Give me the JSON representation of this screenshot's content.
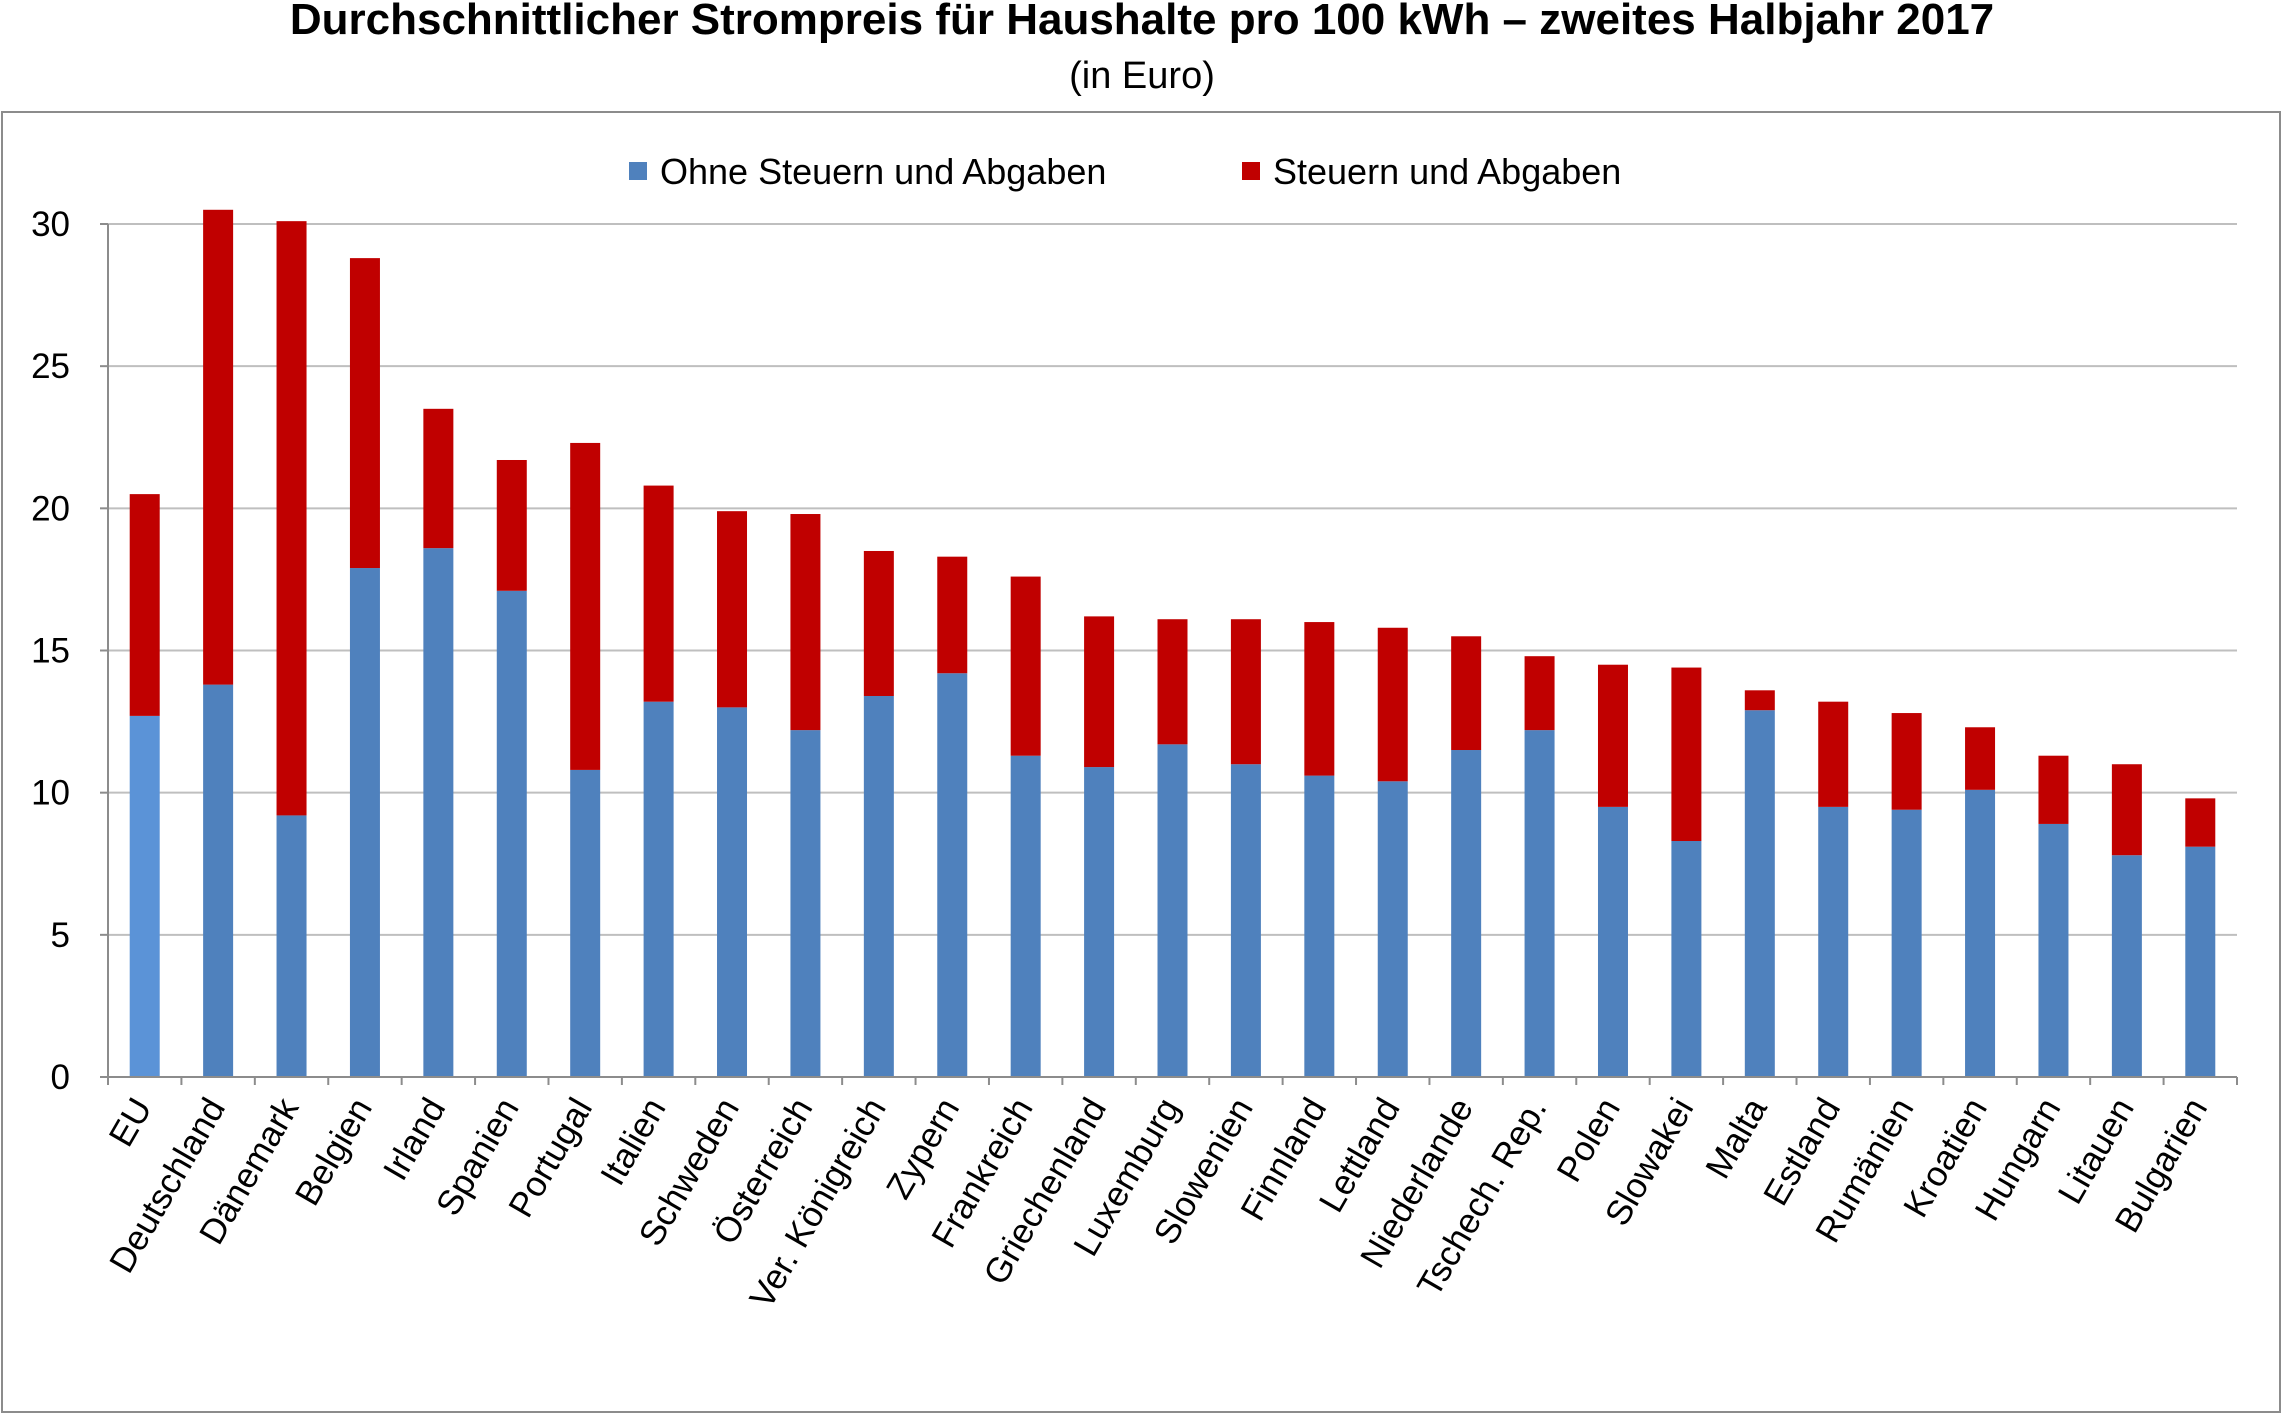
{
  "chart_data": {
    "type": "bar",
    "stacked": true,
    "title": "Durchschnittlicher Strompreis für Haushalte pro 100 kWh – zweites Halbjahr 2017",
    "subtitle": "(in Euro)",
    "xlabel": "",
    "ylabel": "",
    "ylim": [
      0,
      30
    ],
    "yticks": [
      0,
      5,
      10,
      15,
      20,
      25,
      30
    ],
    "grid": true,
    "legend_position": "top-center",
    "categories": [
      "EU",
      "Deutschland",
      "Dänemark",
      "Belgien",
      "Irland",
      "Spanien",
      "Portugal",
      "Italien",
      "Schweden",
      "Österreich",
      "Ver. Königreich",
      "Zypern",
      "Frankreich",
      "Griechenland",
      "Luxemburg",
      "Slowenien",
      "Finnland",
      "Lettland",
      "Niederlande",
      "Tschech. Rep.",
      "Polen",
      "Slowakei",
      "Malta",
      "Estland",
      "Rumänien",
      "Kroatien",
      "Hungarn",
      "Litauen",
      "Bulgarien"
    ],
    "series": [
      {
        "name": "Ohne Steuern und Abgaben",
        "color": "#4f81bd",
        "highlight_color": "#5b93d7",
        "values": [
          12.7,
          13.8,
          9.2,
          17.9,
          18.6,
          17.1,
          10.8,
          13.2,
          13.0,
          12.2,
          13.4,
          14.2,
          11.3,
          10.9,
          11.7,
          11.0,
          10.6,
          10.4,
          11.5,
          12.2,
          9.5,
          8.3,
          12.9,
          9.5,
          9.4,
          10.1,
          8.9,
          7.8,
          8.1
        ]
      },
      {
        "name": "Steuern und Abgaben",
        "color": "#c00000",
        "values": [
          7.8,
          16.7,
          20.9,
          10.9,
          4.9,
          4.6,
          11.5,
          7.6,
          6.9,
          7.6,
          5.1,
          4.1,
          6.3,
          5.3,
          4.4,
          5.1,
          5.4,
          5.4,
          4.0,
          2.6,
          5.0,
          6.1,
          0.7,
          3.7,
          3.4,
          2.2,
          2.4,
          3.2,
          1.7
        ]
      }
    ]
  }
}
